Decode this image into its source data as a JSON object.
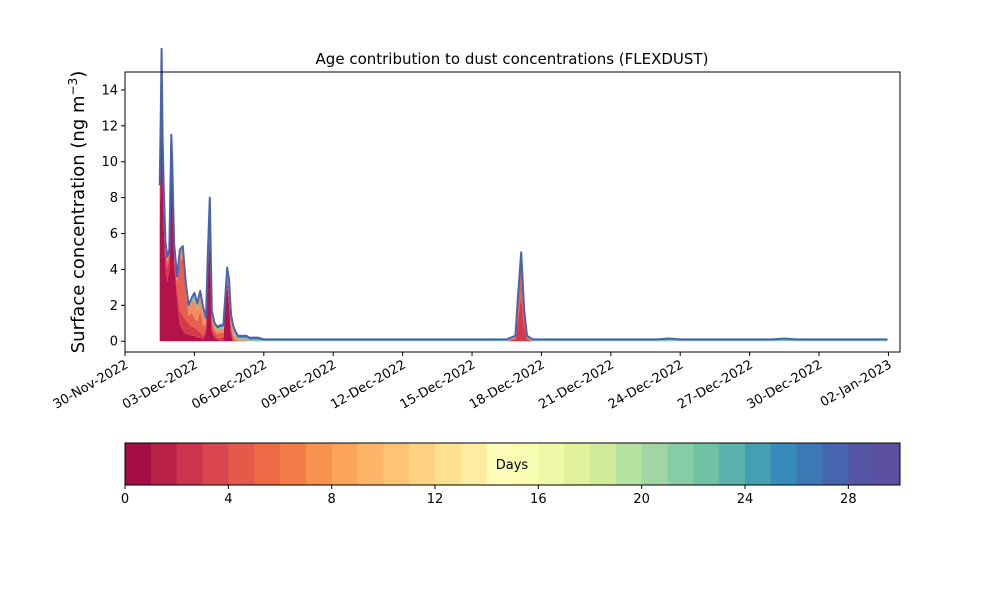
{
  "chart_data": {
    "type": "area",
    "title": "Age contribution to dust concentrations (FLEXDUST)",
    "ylabel": "Surface concentration (ng m",
    "ylabel_exponent": "−3",
    "ylabel_suffix": ")",
    "xlabel": "",
    "ylim": [
      -0.6,
      15.0
    ],
    "xlim": [
      "2022-11-30T00:00",
      "2023-01-02T12:00"
    ],
    "y_ticks": [
      0,
      2,
      4,
      6,
      8,
      10,
      12,
      14
    ],
    "x_ticks": [
      {
        "date": "2022-11-30",
        "label": "30-Nov-2022"
      },
      {
        "date": "2022-12-03",
        "label": "03-Dec-2022"
      },
      {
        "date": "2022-12-06",
        "label": "06-Dec-2022"
      },
      {
        "date": "2022-12-09",
        "label": "09-Dec-2022"
      },
      {
        "date": "2022-12-12",
        "label": "12-Dec-2022"
      },
      {
        "date": "2022-12-15",
        "label": "15-Dec-2022"
      },
      {
        "date": "2022-12-18",
        "label": "18-Dec-2022"
      },
      {
        "date": "2022-12-21",
        "label": "21-Dec-2022"
      },
      {
        "date": "2022-12-24",
        "label": "24-Dec-2022"
      },
      {
        "date": "2022-12-27",
        "label": "27-Dec-2022"
      },
      {
        "date": "2022-12-30",
        "label": "30-Dec-2022"
      },
      {
        "date": "2023-01-02",
        "label": "02-Jan-2023"
      }
    ],
    "grid": false,
    "x": [
      "2022-12-01T12:00",
      "2022-12-01T13:00",
      "2022-12-01T14:00",
      "2022-12-01T15:00",
      "2022-12-01T16:00",
      "2022-12-01T18:00",
      "2022-12-01T20:00",
      "2022-12-01T22:00",
      "2022-12-02T00:00",
      "2022-12-02T01:00",
      "2022-12-02T02:00",
      "2022-12-02T03:00",
      "2022-12-02T06:00",
      "2022-12-02T09:00",
      "2022-12-02T12:00",
      "2022-12-02T15:00",
      "2022-12-02T18:00",
      "2022-12-02T21:00",
      "2022-12-03T00:00",
      "2022-12-03T03:00",
      "2022-12-03T06:00",
      "2022-12-03T09:00",
      "2022-12-03T12:00",
      "2022-12-03T14:00",
      "2022-12-03T16:00",
      "2022-12-03T18:00",
      "2022-12-03T21:00",
      "2022-12-04T00:00",
      "2022-12-04T03:00",
      "2022-12-04T06:00",
      "2022-12-04T08:00",
      "2022-12-04T10:00",
      "2022-12-04T12:00",
      "2022-12-04T14:00",
      "2022-12-04T16:00",
      "2022-12-04T18:00",
      "2022-12-04T21:00",
      "2022-12-05T00:00",
      "2022-12-05T03:00",
      "2022-12-05T06:00",
      "2022-12-05T09:00",
      "2022-12-05T12:00",
      "2022-12-05T15:00",
      "2022-12-05T18:00",
      "2022-12-06T00:00",
      "2022-12-06T06:00",
      "2022-12-06T09:00",
      "2022-12-06T12:00",
      "2022-12-06T18:00",
      "2022-12-07T00:00",
      "2022-12-07T06:00",
      "2022-12-07T12:00",
      "2022-12-08T00:00",
      "2022-12-08T12:00",
      "2022-12-09T00:00",
      "2022-12-10T00:00",
      "2022-12-12T00:00",
      "2022-12-14T00:00",
      "2022-12-16T00:00",
      "2022-12-16T12:00",
      "2022-12-16T21:00",
      "2022-12-17T00:00",
      "2022-12-17T03:00",
      "2022-12-17T06:00",
      "2022-12-17T09:00",
      "2022-12-17T15:00",
      "2022-12-18T00:00",
      "2022-12-20T00:00",
      "2022-12-23T00:00",
      "2022-12-23T12:00",
      "2022-12-24T00:00",
      "2022-12-26T00:00",
      "2022-12-28T00:00",
      "2022-12-28T12:00",
      "2022-12-29T00:00",
      "2023-01-01T00:00",
      "2023-01-01T23:00"
    ],
    "series": [
      {
        "values": [
          6.8,
          9.5,
          13.3,
          9.0,
          6.6,
          3.9,
          3.3,
          4.0,
          10.4,
          9.0,
          6.6,
          4.3,
          2.3,
          0.9,
          0.6,
          0.4,
          0.4,
          0.3,
          0.3,
          0.2,
          0.2,
          0.1,
          0.5,
          3.6,
          5.8,
          0.5,
          0.2,
          0.1,
          0.0,
          0.0,
          1.8,
          3.2,
          2.0,
          0.4,
          0.0,
          0.0,
          0.0,
          0.0,
          0.0,
          0.0,
          0.0,
          0.0,
          0.0,
          0.0,
          0.0,
          0.0,
          0.0,
          0.0,
          0.0,
          0.0,
          0.0,
          0.0,
          0.0,
          0.0,
          0.0,
          0.0,
          0.0,
          0.0,
          0.0,
          0.0,
          0.0,
          0.0,
          0.0,
          0.0,
          0.0,
          0.0,
          0.0,
          0.0,
          0.0,
          0.0,
          0.0,
          0.0,
          0.0,
          0.0,
          0.0,
          0.0,
          0.0
        ]
      },
      {
        "values": [
          1.5,
          2.0,
          2.0,
          1.5,
          1.5,
          1.0,
          0.8,
          0.6,
          0.5,
          0.5,
          0.4,
          0.5,
          0.6,
          0.8,
          0.8,
          0.8,
          0.6,
          0.5,
          0.5,
          0.4,
          0.3,
          0.2,
          0.2,
          0.3,
          0.5,
          0.2,
          0.2,
          0.1,
          0.2,
          0.2,
          0.2,
          0.3,
          0.4,
          0.3,
          0.1,
          0.0,
          0.0,
          0.0,
          0.0,
          0.0,
          0.0,
          0.0,
          0.0,
          0.0,
          0.0,
          0.0,
          0.0,
          0.0,
          0.0,
          0.0,
          0.0,
          0.0,
          0.0,
          0.0,
          0.0,
          0.0,
          0.0,
          0.0,
          0.0,
          0.0,
          0.1,
          1.3,
          2.5,
          0.8,
          0.1,
          0.0,
          0.0,
          0.0,
          0.0,
          0.0,
          0.0,
          0.0,
          0.0,
          0.0,
          0.0,
          0.0,
          0.0
        ]
      },
      {
        "values": [
          0.3,
          0.5,
          0.6,
          0.5,
          0.4,
          0.3,
          0.3,
          0.2,
          0.3,
          0.3,
          0.3,
          0.3,
          0.4,
          2.8,
          3.2,
          1.6,
          0.4,
          0.8,
          0.5,
          0.5,
          1.2,
          0.6,
          0.2,
          0.6,
          0.9,
          0.4,
          0.2,
          0.2,
          0.3,
          0.3,
          0.1,
          0.2,
          0.3,
          0.2,
          0.2,
          0.1,
          0.0,
          0.0,
          0.0,
          0.0,
          0.0,
          0.0,
          0.0,
          0.0,
          0.0,
          0.0,
          0.0,
          0.0,
          0.0,
          0.0,
          0.0,
          0.0,
          0.0,
          0.0,
          0.0,
          0.0,
          0.0,
          0.0,
          0.0,
          0.0,
          0.1,
          1.0,
          1.8,
          0.7,
          0.1,
          0.0,
          0.0,
          0.0,
          0.0,
          0.0,
          0.0,
          0.0,
          0.0,
          0.0,
          0.0,
          0.0,
          0.0
        ]
      },
      {
        "values": [
          0.1,
          0.2,
          0.3,
          0.2,
          0.2,
          0.2,
          0.2,
          0.2,
          0.2,
          0.2,
          0.2,
          0.2,
          0.2,
          0.5,
          0.6,
          0.4,
          0.4,
          0.6,
          1.0,
          0.6,
          0.8,
          0.7,
          0.2,
          0.3,
          0.5,
          0.3,
          0.2,
          0.2,
          0.2,
          0.2,
          0.1,
          0.2,
          0.4,
          0.3,
          0.3,
          0.2,
          0.1,
          0.1,
          0.1,
          0.1,
          0.0,
          0.0,
          0.0,
          0.0,
          0.0,
          0.0,
          0.0,
          0.0,
          0.0,
          0.0,
          0.0,
          0.0,
          0.0,
          0.0,
          0.0,
          0.0,
          0.0,
          0.0,
          0.0,
          0.0,
          0.0,
          0.3,
          0.5,
          0.2,
          0.0,
          0.0,
          0.0,
          0.0,
          0.0,
          0.0,
          0.0,
          0.0,
          0.0,
          0.0,
          0.0,
          0.0,
          0.0
        ]
      },
      {
        "values": [
          0.0,
          0.1,
          0.1,
          0.1,
          0.1,
          0.1,
          0.1,
          0.1,
          0.1,
          0.1,
          0.1,
          0.1,
          0.1,
          0.1,
          0.1,
          0.1,
          0.2,
          0.2,
          0.3,
          0.3,
          0.2,
          0.2,
          0.1,
          0.1,
          0.2,
          0.2,
          0.1,
          0.1,
          0.1,
          0.1,
          0.1,
          0.1,
          0.2,
          0.2,
          0.2,
          0.2,
          0.1,
          0.1,
          0.1,
          0.1,
          0.1,
          0.1,
          0.1,
          0.1,
          0.05,
          0.05,
          0.05,
          0.05,
          0.05,
          0.05,
          0.05,
          0.05,
          0.05,
          0.05,
          0.05,
          0.05,
          0.05,
          0.05,
          0.05,
          0.05,
          0.05,
          0.1,
          0.1,
          0.05,
          0.05,
          0.05,
          0.05,
          0.05,
          0.05,
          0.1,
          0.05,
          0.05,
          0.05,
          0.1,
          0.05,
          0.05,
          0.05
        ]
      },
      {
        "values": [
          0.0,
          0.0,
          0.0,
          0.0,
          0.0,
          0.0,
          0.0,
          0.0,
          0.0,
          0.0,
          0.0,
          0.0,
          0.0,
          0.0,
          0.0,
          0.0,
          0.0,
          0.0,
          0.1,
          0.1,
          0.1,
          0.1,
          0.1,
          0.1,
          0.1,
          0.1,
          0.1,
          0.1,
          0.1,
          0.1,
          0.1,
          0.1,
          0.1,
          0.1,
          0.1,
          0.1,
          0.1,
          0.1,
          0.1,
          0.1,
          0.1,
          0.1,
          0.1,
          0.1,
          0.05,
          0.05,
          0.05,
          0.05,
          0.05,
          0.05,
          0.05,
          0.05,
          0.05,
          0.05,
          0.05,
          0.05,
          0.05,
          0.05,
          0.05,
          0.05,
          0.05,
          0.05,
          0.05,
          0.05,
          0.05,
          0.05,
          0.05,
          0.05,
          0.05,
          0.05,
          0.05,
          0.05,
          0.05,
          0.05,
          0.05,
          0.05,
          0.05
        ]
      }
    ],
    "series_colors": [
      "#b3124a",
      "#d8394a",
      "#e75f4d",
      "#f58e5c",
      "#7ec9a5",
      "#4a63ad"
    ],
    "colorbar": {
      "label": "Days",
      "vmin": 0,
      "vmax": 30,
      "ticks": [
        0,
        4,
        8,
        12,
        16,
        20,
        24,
        28
      ],
      "colors": [
        "#a50e45",
        "#ba2149",
        "#cc334c",
        "#da464d",
        "#e4594a",
        "#ed6a45",
        "#f47b47",
        "#f8924f",
        "#fba45a",
        "#fdb567",
        "#fec474",
        "#fed283",
        "#fee091",
        "#feeda1",
        "#fffbb8",
        "#f9fcb3",
        "#eef8a6",
        "#e0f29a",
        "#cfeb9b",
        "#b7e1a0",
        "#9fd6a4",
        "#86cca5",
        "#70c2a5",
        "#5ab0ab",
        "#449fb3",
        "#368bbb",
        "#3c78b6",
        "#4566ae",
        "#5555a6",
        "#5e4fa2"
      ]
    }
  }
}
